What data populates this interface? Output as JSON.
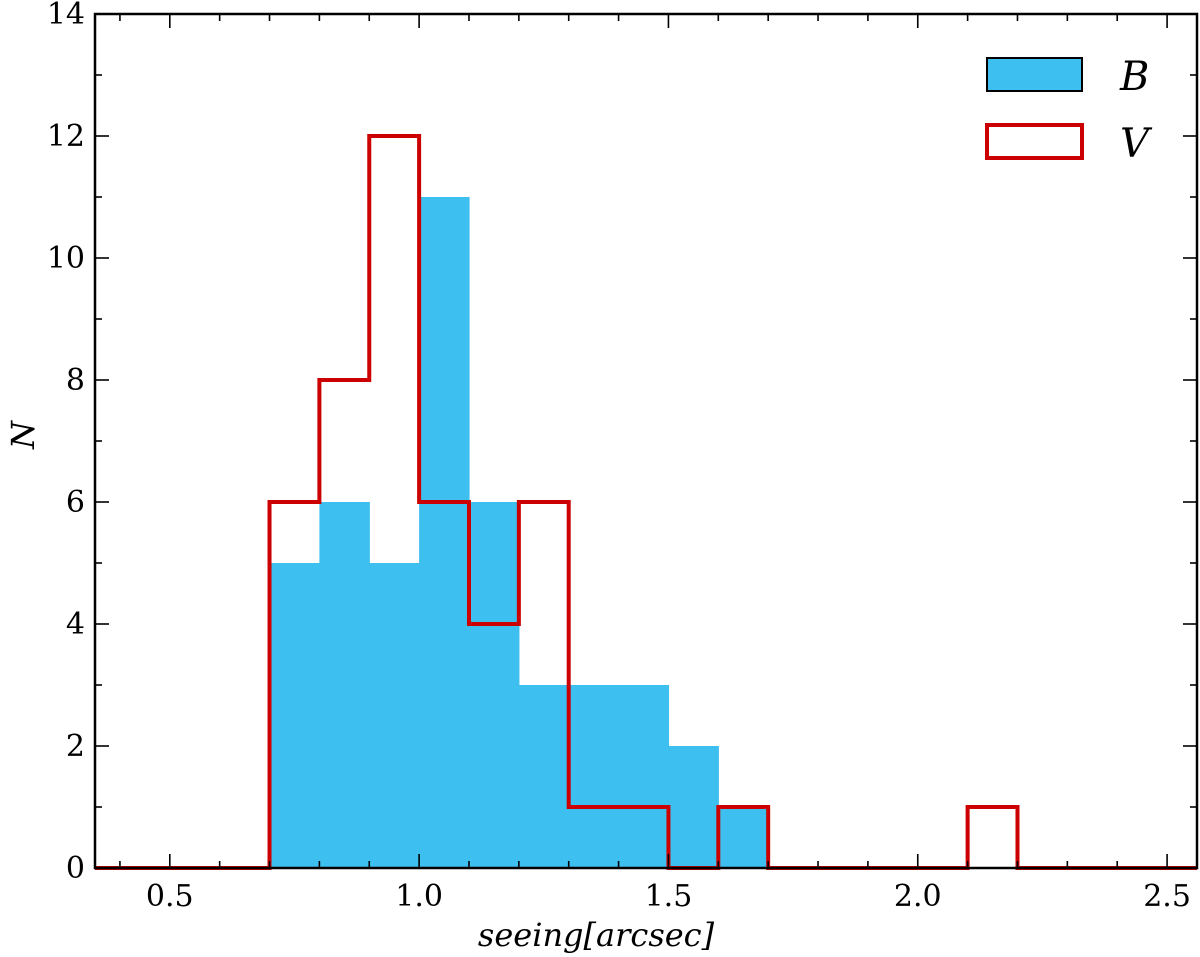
{
  "chart_data": {
    "type": "bar",
    "subtype": "histogram",
    "xlabel": "seeing[arcsec]",
    "ylabel": "N",
    "xlim": [
      0.35,
      2.56
    ],
    "ylim": [
      0,
      14
    ],
    "xticks": [
      0.5,
      1.0,
      1.5,
      2.0,
      2.5
    ],
    "xtick_labels": [
      "0.5",
      "1.0",
      "1.5",
      "2.0",
      "2.5"
    ],
    "yticks": [
      0,
      2,
      4,
      6,
      8,
      10,
      12,
      14
    ],
    "ytick_labels": [
      "0",
      "2",
      "4",
      "6",
      "8",
      "10",
      "12",
      "14"
    ],
    "grid": false,
    "legend_position": "top-right",
    "bin_edges": [
      0.4,
      0.5,
      0.6,
      0.7,
      0.8,
      0.9,
      1.0,
      1.1,
      1.2,
      1.3,
      1.4,
      1.5,
      1.6,
      1.7,
      1.8,
      1.9,
      2.0,
      2.1,
      2.2,
      2.3,
      2.4,
      2.5
    ],
    "series": [
      {
        "name": "B",
        "style": "filled",
        "color": "#3dbfef",
        "values": [
          0,
          0,
          0,
          5,
          6,
          5,
          11,
          6,
          3,
          3,
          3,
          2,
          1,
          0,
          0,
          0,
          0,
          0,
          0,
          0,
          0
        ]
      },
      {
        "name": "V",
        "style": "step",
        "color": "#cc0000",
        "values": [
          0,
          0,
          0,
          6,
          8,
          12,
          6,
          4,
          6,
          1,
          1,
          0,
          1,
          0,
          0,
          0,
          0,
          1,
          0,
          0,
          0
        ]
      }
    ]
  }
}
